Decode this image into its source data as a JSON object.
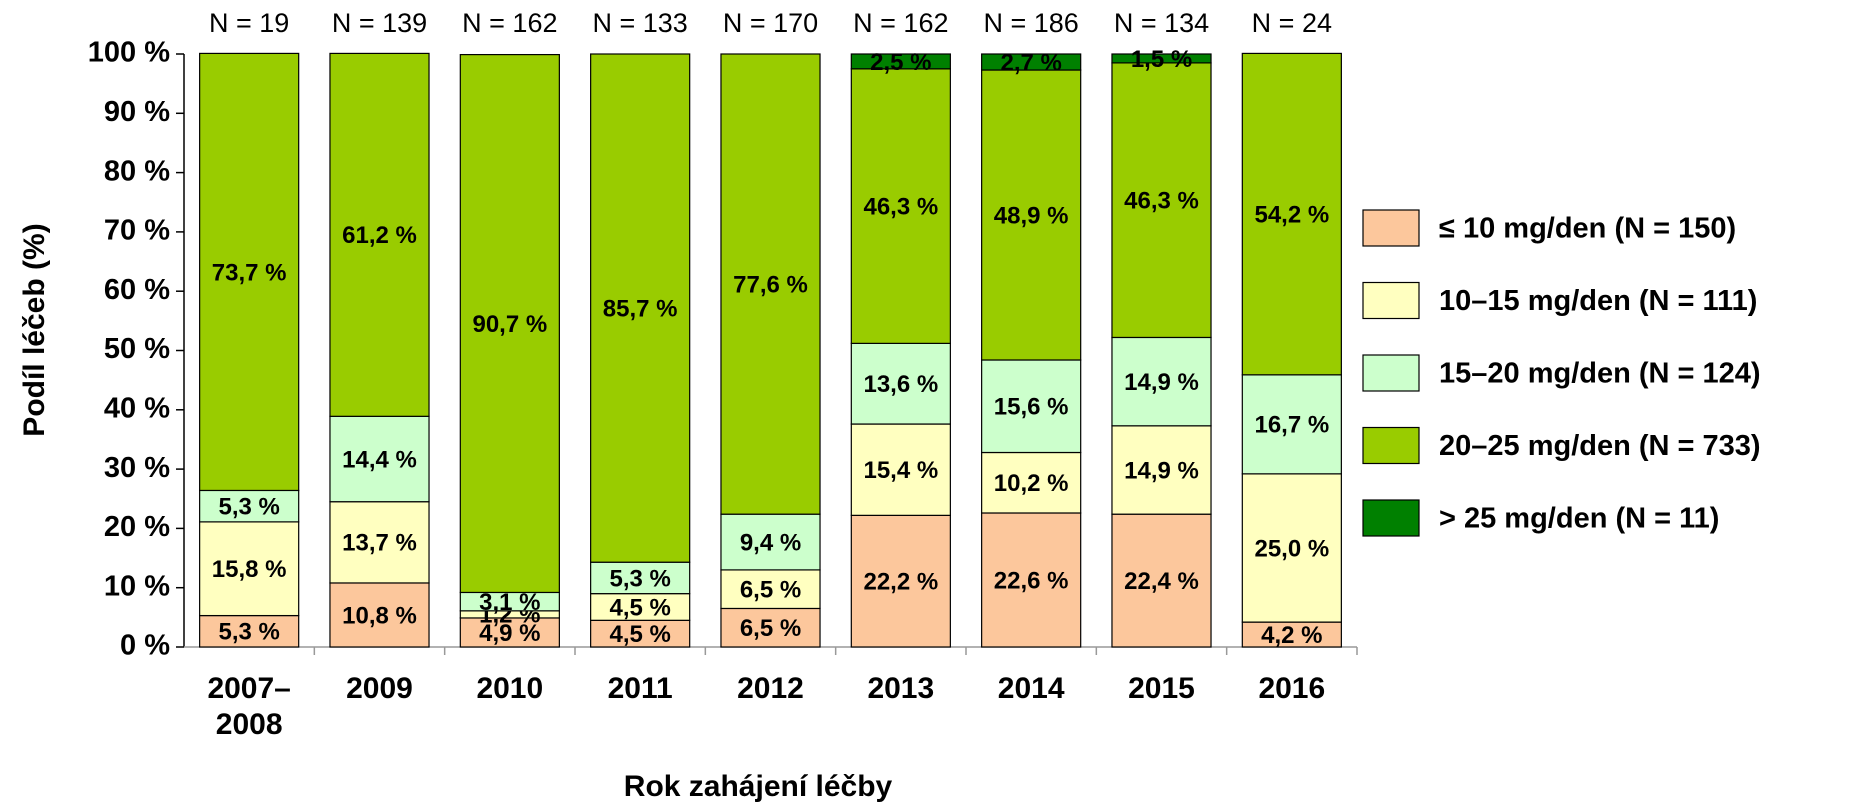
{
  "chart_data": {
    "type": "stacked_bar",
    "x_label": "Rok zahájení léčby",
    "y_label": "Podíl léčeb (%)",
    "categories": [
      "2007–2008",
      "2009",
      "2010",
      "2011",
      "2012",
      "2013",
      "2014",
      "2015",
      "2016"
    ],
    "annotations": [
      "N = 19",
      "N = 139",
      "N = 162",
      "N = 133",
      "N = 170",
      "N = 162",
      "N = 186",
      "N = 134",
      "N = 24"
    ],
    "ylim": [
      0,
      100
    ],
    "yticks": [
      {
        "value": 0,
        "label": "0 %"
      },
      {
        "value": 10,
        "label": "10 %"
      },
      {
        "value": 20,
        "label": "20 %"
      },
      {
        "value": 30,
        "label": "30 %"
      },
      {
        "value": 40,
        "label": "40 %"
      },
      {
        "value": 50,
        "label": "50 %"
      },
      {
        "value": 60,
        "label": "60 %"
      },
      {
        "value": 70,
        "label": "70 %"
      },
      {
        "value": 80,
        "label": "80 %"
      },
      {
        "value": 90,
        "label": "90 %"
      },
      {
        "value": 100,
        "label": "100 %"
      }
    ],
    "legend": "right",
    "series": [
      {
        "name": "≤ 10 mg/den (N = 150)",
        "color": "#fcc79c",
        "values": [
          5.3,
          10.8,
          4.9,
          4.5,
          6.5,
          22.2,
          22.6,
          22.4,
          4.2
        ],
        "value_labels": [
          "5,3 %",
          "10,8 %",
          "4,9 %",
          "4,5 %",
          "6,5 %",
          "22,2 %",
          "22,6 %",
          "22,4 %",
          "4,2 %"
        ]
      },
      {
        "name": "10–15 mg/den (N = 111)",
        "color": "#ffffc0",
        "values": [
          15.8,
          13.7,
          1.2,
          4.5,
          6.5,
          15.4,
          10.2,
          14.9,
          25.0
        ],
        "value_labels": [
          "15,8 %",
          "13,7 %",
          "1,2 %",
          "4,5 %",
          "6,5 %",
          "15,4 %",
          "10,2 %",
          "14,9 %",
          "25,0 %"
        ]
      },
      {
        "name": "15–20 mg/den (N = 124)",
        "color": "#ccffcc",
        "values": [
          5.3,
          14.4,
          3.1,
          5.3,
          9.4,
          13.6,
          15.6,
          14.9,
          16.7
        ],
        "value_labels": [
          "5,3 %",
          "14,4 %",
          "3,1 %",
          "5,3 %",
          "9,4 %",
          "13,6 %",
          "15,6 %",
          "14,9 %",
          "16,7 %"
        ]
      },
      {
        "name": "20–25 mg/den (N = 733)",
        "color": "#99cc00",
        "values": [
          73.7,
          61.2,
          90.7,
          85.7,
          77.6,
          46.3,
          48.9,
          46.3,
          54.2
        ],
        "value_labels": [
          "73,7 %",
          "61,2 %",
          "90,7 %",
          "85,7 %",
          "77,6 %",
          "46,3 %",
          "48,9 %",
          "46,3 %",
          "54,2 %"
        ]
      },
      {
        "name": "> 25 mg/den (N = 11)",
        "color": "#008000",
        "values": [
          null,
          null,
          null,
          null,
          null,
          2.5,
          2.7,
          1.5,
          null
        ],
        "value_labels": [
          null,
          null,
          null,
          null,
          null,
          "2,5 %",
          "2,7 %",
          "1,5 %",
          null
        ]
      }
    ]
  }
}
